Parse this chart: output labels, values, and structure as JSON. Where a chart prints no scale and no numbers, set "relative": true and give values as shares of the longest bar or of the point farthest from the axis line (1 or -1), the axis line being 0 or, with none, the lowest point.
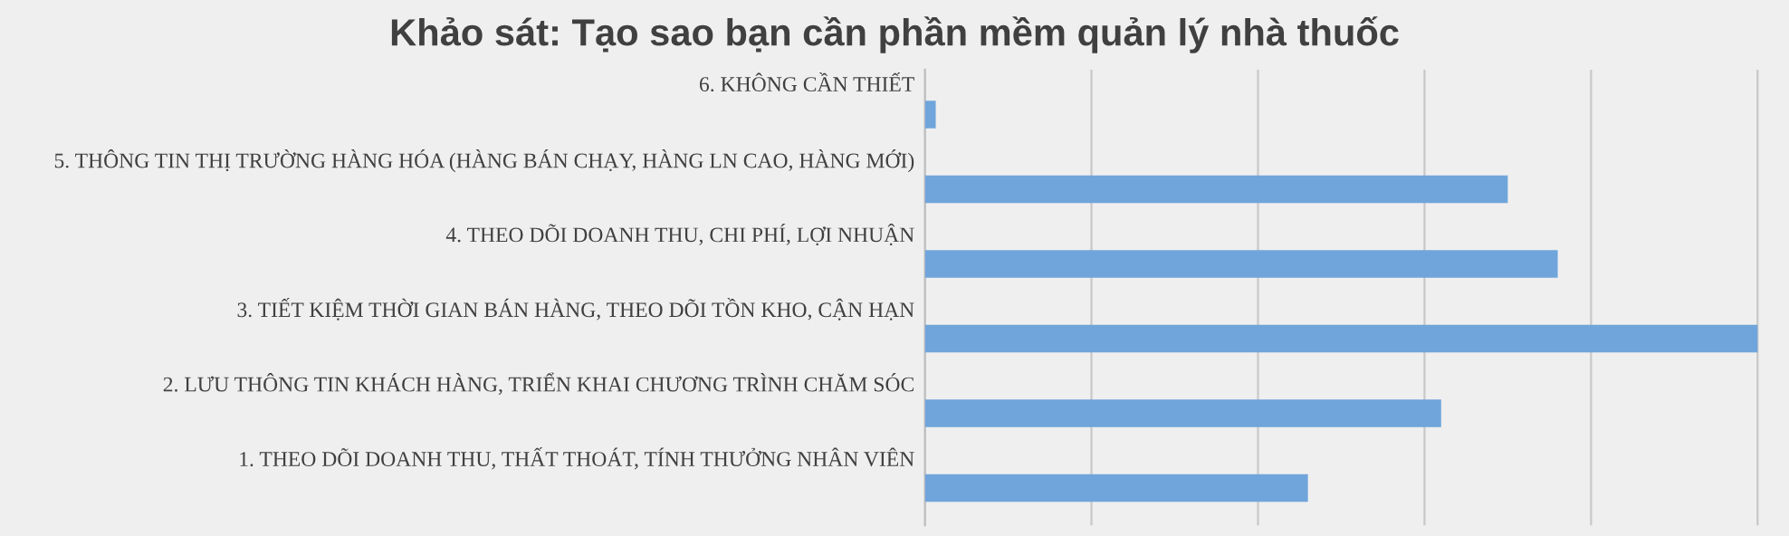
{
  "chart_data": {
    "type": "bar",
    "orientation": "horizontal",
    "relative": true,
    "title": "Khảo sát: Tạo sao bạn cần phần mềm quản lý nhà thuốc",
    "categories": [
      "6. KHÔNG CẦN THIẾT",
      "5. THÔNG TIN THỊ TRƯỜNG HÀNG HÓA (HÀNG BÁN CHẠY, HÀNG LN CAO, HÀNG MỚI)",
      "4. THEO DÕI DOANH THU, CHI PHÍ, LỢI NHUẬN",
      "3. TIẾT KIỆM THỜI GIAN BÁN HÀNG, THEO DÕI TỒN KHO, CẬN HẠN",
      "2. LƯU THÔNG TIN KHÁCH HÀNG, TRIỂN KHAI CHƯƠNG TRÌNH CHĂM SÓC",
      "1. THEO DÕI DOANH THU, THẤT THOÁT, TÍNH THƯỞNG NHÂN VIÊN"
    ],
    "values": [
      0.013,
      0.7,
      0.76,
      1,
      0.62,
      0.46
    ],
    "color": "#70a5db",
    "grid": "x",
    "legend": false
  }
}
